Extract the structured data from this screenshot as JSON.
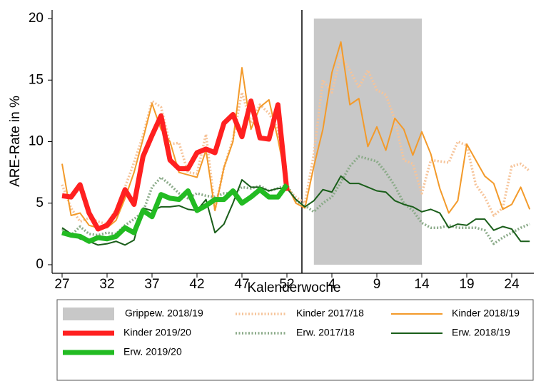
{
  "chart_data": {
    "type": "line",
    "y_label": "ARE-Rate in %",
    "x_label": "Kalenderwoche",
    "categories": [
      "27",
      null,
      null,
      null,
      null,
      "32",
      null,
      null,
      null,
      null,
      "37",
      null,
      null,
      null,
      null,
      "42",
      null,
      null,
      null,
      null,
      "47",
      null,
      null,
      null,
      null,
      "52",
      null,
      null,
      null,
      null,
      "4",
      null,
      null,
      null,
      null,
      "9",
      null,
      null,
      null,
      null,
      "14",
      null,
      null,
      null,
      null,
      "19",
      null,
      null,
      null,
      null,
      "24",
      null,
      null
    ],
    "ylim": [
      0,
      20
    ],
    "yticks": [
      0,
      5,
      10,
      15,
      20
    ],
    "band": {
      "name": "Grippew. 2018/19",
      "color": "#c8c8c8",
      "x": [
        28,
        40
      ]
    },
    "series": [
      {
        "name": "Kinder 2017/18",
        "color": "#f6c49a",
        "style": "dotted",
        "values": [
          6.5,
          4.6,
          3.5,
          3.8,
          3.5,
          3.3,
          4.5,
          6.3,
          8.3,
          10.5,
          13.3,
          12.8,
          9.8,
          9.9,
          7.5,
          7.4,
          10.6,
          4.5,
          7.9,
          10.2,
          14.0,
          11.5,
          13.0,
          12.3,
          11.0,
          6.2,
          5.5,
          5.0,
          9.0,
          15.0,
          14.0,
          17.0,
          15.8,
          14.4,
          15.8,
          14.2,
          13.8,
          11.8,
          8.5,
          8.2,
          5.8,
          8.5,
          8.4,
          8.3,
          10.0,
          9.7,
          6.5,
          5.5,
          4.0,
          4.6,
          8.0,
          8.2,
          7.6
        ]
      },
      {
        "name": "Erw. 2017/18",
        "color": "#8aaa88",
        "style": "dotted",
        "values": [
          2.9,
          2.4,
          3.1,
          2.5,
          2.4,
          2.6,
          2.5,
          3.2,
          3.7,
          4.3,
          6.3,
          7.1,
          6.5,
          5.8,
          5.4,
          5.8,
          5.6,
          5.5,
          5.8,
          5.8,
          6.3,
          6.2,
          6.4,
          6.0,
          6.2,
          6.5,
          5.2,
          4.8,
          4.3,
          5.0,
          5.5,
          6.7,
          8.0,
          8.8,
          8.6,
          8.4,
          7.5,
          6.4,
          5.0,
          4.4,
          3.4,
          3.0,
          3.0,
          3.2,
          3.0,
          3.0,
          3.0,
          2.8,
          1.7,
          2.2,
          2.6,
          3.0,
          3.3
        ]
      },
      {
        "name": "Kinder 2018/19",
        "color": "#f39a2a",
        "style": "solid",
        "values": [
          8.2,
          4.0,
          4.2,
          3.2,
          3.0,
          3.0,
          3.6,
          5.4,
          7.5,
          10.2,
          13.1,
          11.0,
          10.0,
          7.5,
          7.3,
          7.1,
          9.3,
          4.4,
          7.9,
          10.0,
          16.0,
          11.0,
          12.8,
          13.4,
          10.2,
          6.5,
          5.0,
          4.6,
          8.0,
          11.0,
          15.6,
          18.1,
          13.0,
          13.5,
          9.6,
          11.2,
          9.3,
          11.9,
          11.0,
          8.9,
          10.8,
          9.0,
          6.2,
          4.2,
          5.2,
          9.8,
          8.5,
          7.2,
          6.6,
          4.5,
          4.9,
          6.3,
          4.5
        ]
      },
      {
        "name": "Erw. 2018/19",
        "color": "#1a5e1a",
        "style": "solid",
        "values": [
          3.0,
          2.5,
          2.1,
          1.9,
          1.6,
          1.7,
          1.9,
          1.6,
          2.0,
          4.6,
          4.4,
          4.7,
          4.7,
          4.8,
          4.5,
          4.4,
          5.3,
          2.6,
          3.3,
          5.0,
          6.9,
          6.3,
          6.3,
          6.0,
          6.2,
          6.2,
          5.3,
          4.7,
          5.2,
          6.1,
          5.9,
          7.2,
          6.6,
          6.6,
          6.3,
          6.0,
          5.9,
          5.2,
          4.9,
          4.7,
          4.3,
          4.5,
          4.2,
          3.0,
          3.3,
          3.2,
          3.7,
          3.7,
          2.8,
          3.1,
          2.9,
          1.9,
          1.9
        ]
      },
      {
        "name": "Kinder 2019/20",
        "color": "#ff2020",
        "style": "thick",
        "values": [
          5.6,
          5.5,
          6.5,
          4.2,
          2.9,
          3.2,
          4.2,
          6.1,
          4.9,
          8.8,
          10.5,
          12.1,
          8.5,
          7.8,
          7.8,
          9.1,
          9.4,
          9.1,
          11.5,
          12.2,
          10.4,
          13.3,
          10.3,
          10.2,
          13.0,
          6.0,
          null,
          null,
          null,
          null,
          null,
          null,
          null,
          null,
          null,
          null,
          null,
          null,
          null,
          null,
          null,
          null,
          null,
          null,
          null,
          null,
          null,
          null,
          null,
          null,
          null,
          null,
          null
        ]
      },
      {
        "name": "Erw. 2019/20",
        "color": "#22bb22",
        "style": "thick",
        "values": [
          2.6,
          2.4,
          2.3,
          1.9,
          2.2,
          2.1,
          2.3,
          3.0,
          2.6,
          4.4,
          3.9,
          5.7,
          5.4,
          5.3,
          6.0,
          4.4,
          4.8,
          5.3,
          5.3,
          6.0,
          5.0,
          5.5,
          6.1,
          5.5,
          5.5,
          6.5,
          null,
          null,
          null,
          null,
          null,
          null,
          null,
          null,
          null,
          null,
          null,
          null,
          null,
          null,
          null,
          null,
          null,
          null,
          null,
          null,
          null,
          null,
          null,
          null,
          null,
          null,
          null
        ]
      }
    ]
  }
}
